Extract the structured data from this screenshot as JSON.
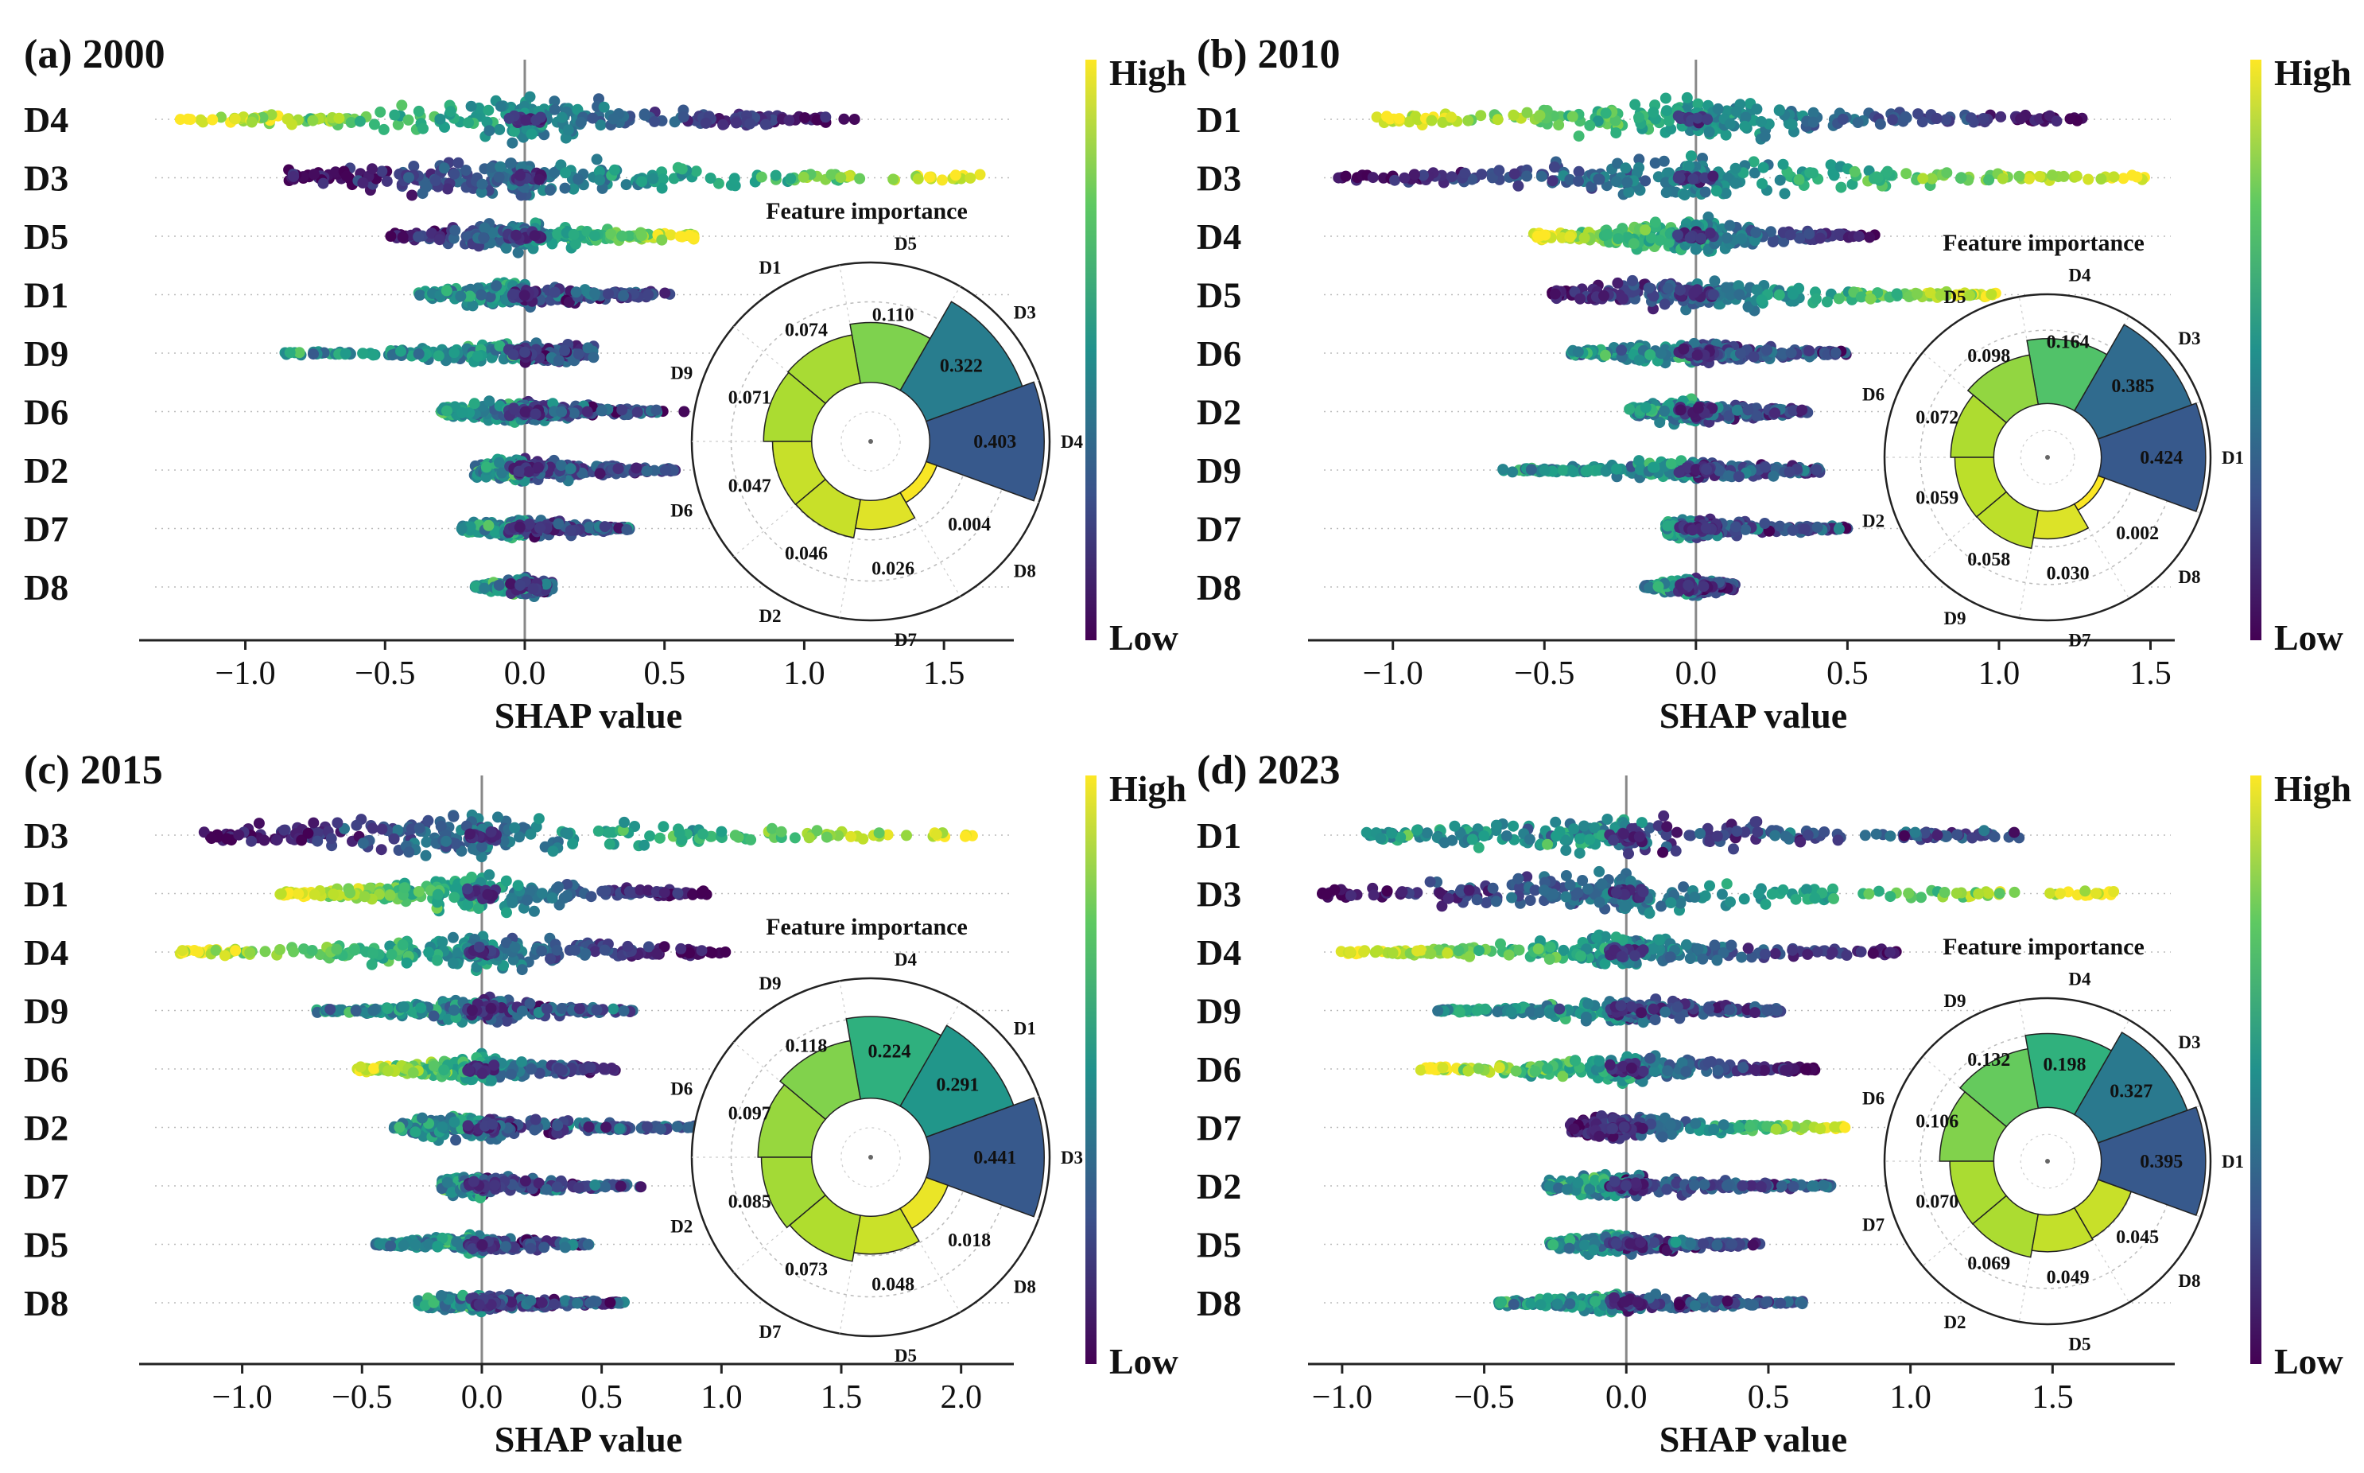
{
  "colorbar": {
    "high": "High",
    "low": "Low",
    "stops": [
      "#440154",
      "#3b528b",
      "#21918c",
      "#5ec962",
      "#fde725"
    ]
  },
  "panels": [
    {
      "title": "(a) 2000",
      "chart_data": {
        "type": "scatter",
        "subtype": "shap-beeswarm",
        "xlabel": "SHAP value",
        "xlim": [
          -1.38,
          1.75
        ],
        "xticks": [
          -1.0,
          -0.5,
          0.0,
          0.5,
          1.0,
          1.5
        ],
        "xtick_labels": [
          "−1.0",
          "−0.5",
          "0.0",
          "0.5",
          "1.0",
          "1.5"
        ],
        "features": [
          {
            "name": "D4",
            "min": -1.25,
            "max": 1.15,
            "outlier": 1.18,
            "low_side": "high",
            "spread": 1.0
          },
          {
            "name": "D3",
            "min": -0.85,
            "max": 1.63,
            "low_side": "low",
            "spread": 0.85
          },
          {
            "name": "D5",
            "min": -0.48,
            "max": 0.62,
            "low_side": "low",
            "spread": 0.6
          },
          {
            "name": "D1",
            "min": -0.38,
            "max": 0.53,
            "low_side": "mid",
            "spread": 0.55
          },
          {
            "name": "D9",
            "min": -0.86,
            "max": 0.25,
            "low_side": "mid",
            "spread": 0.4
          },
          {
            "name": "D6",
            "min": -0.3,
            "max": 0.5,
            "outlier": 0.57,
            "low_side": "mid",
            "spread": 0.5
          },
          {
            "name": "D2",
            "min": -0.18,
            "max": 0.55,
            "low_side": "mid",
            "spread": 0.45
          },
          {
            "name": "D7",
            "min": -0.23,
            "max": 0.38,
            "low_side": "mid",
            "spread": 0.35
          },
          {
            "name": "D8",
            "min": -0.18,
            "max": 0.1,
            "low_side": "mid",
            "spread": 0.3
          }
        ],
        "importance": {
          "title": "Feature importance",
          "type": "polar-bar",
          "features": [
            "D4",
            "D3",
            "D5",
            "D1",
            "D9",
            "D6",
            "D2",
            "D7",
            "D8"
          ],
          "values": [
            0.403,
            0.322,
            0.11,
            0.074,
            0.071,
            0.047,
            0.046,
            0.026,
            0.004
          ],
          "value_labels": [
            "0.403",
            "0.322",
            "0.110",
            "0.074",
            "0.071",
            "0.047",
            "0.046",
            "0.026",
            "0.004"
          ]
        }
      }
    },
    {
      "title": "(b) 2010",
      "chart_data": {
        "type": "scatter",
        "subtype": "shap-beeswarm",
        "xlabel": "SHAP value",
        "xlim": [
          -1.28,
          1.58
        ],
        "xticks": [
          -1.0,
          -0.5,
          0.0,
          0.5,
          1.0,
          1.5
        ],
        "xtick_labels": [
          "−1.0",
          "−0.5",
          "0.0",
          "0.5",
          "1.0",
          "1.5"
        ],
        "features": [
          {
            "name": "D1",
            "min": -1.07,
            "max": 1.3,
            "low_side": "high",
            "spread": 0.9
          },
          {
            "name": "D3",
            "min": -1.2,
            "max": 1.5,
            "low_side": "low",
            "spread": 0.95
          },
          {
            "name": "D4",
            "min": -0.55,
            "max": 0.6,
            "low_side": "high",
            "spread": 0.75
          },
          {
            "name": "D5",
            "min": -0.48,
            "max": 1.0,
            "low_side": "low",
            "spread": 0.6
          },
          {
            "name": "D6",
            "min": -0.42,
            "max": 0.5,
            "low_side": "mid",
            "spread": 0.55
          },
          {
            "name": "D2",
            "min": -0.22,
            "max": 0.37,
            "low_side": "mid",
            "spread": 0.45
          },
          {
            "name": "D9",
            "min": -0.65,
            "max": 0.43,
            "low_side": "mid",
            "spread": 0.4
          },
          {
            "name": "D7",
            "min": -0.1,
            "max": 0.5,
            "low_side": "mid",
            "spread": 0.35
          },
          {
            "name": "D8",
            "min": -0.17,
            "max": 0.13,
            "low_side": "mid",
            "spread": 0.3
          }
        ],
        "importance": {
          "title": "Feature importance",
          "type": "polar-bar",
          "features": [
            "D1",
            "D3",
            "D4",
            "D5",
            "D6",
            "D2",
            "D9",
            "D7",
            "D8"
          ],
          "values": [
            0.424,
            0.385,
            0.164,
            0.098,
            0.072,
            0.059,
            0.058,
            0.03,
            0.002
          ],
          "value_labels": [
            "0.424",
            "0.385",
            "0.164",
            "0.098",
            "0.072",
            "0.059",
            "0.058",
            "0.030",
            "0.002"
          ]
        }
      }
    },
    {
      "title": "(c) 2015",
      "chart_data": {
        "type": "scatter",
        "subtype": "shap-beeswarm",
        "xlabel": "SHAP value",
        "xlim": [
          -1.43,
          2.22
        ],
        "xticks": [
          -1.0,
          -0.5,
          0.0,
          0.5,
          1.0,
          1.5,
          2.0
        ],
        "xtick_labels": [
          "−1.0",
          "−0.5",
          "0.0",
          "0.5",
          "1.0",
          "1.5",
          "2.0"
        ],
        "features": [
          {
            "name": "D3",
            "min": -1.17,
            "max": 2.05,
            "low_side": "low",
            "spread": 1.0
          },
          {
            "name": "D1",
            "min": -0.85,
            "max": 0.95,
            "low_side": "high",
            "spread": 0.85
          },
          {
            "name": "D4",
            "min": -1.27,
            "max": 1.02,
            "low_side": "high",
            "spread": 0.75
          },
          {
            "name": "D9",
            "min": -0.7,
            "max": 0.63,
            "low_side": "mid",
            "spread": 0.45
          },
          {
            "name": "D6",
            "min": -0.52,
            "max": 0.57,
            "low_side": "high",
            "spread": 0.55
          },
          {
            "name": "D2",
            "min": -0.37,
            "max": 1.0,
            "low_side": "mid",
            "spread": 0.5
          },
          {
            "name": "D7",
            "min": -0.17,
            "max": 0.67,
            "low_side": "mid",
            "spread": 0.4
          },
          {
            "name": "D5",
            "min": -0.45,
            "max": 0.45,
            "low_side": "mid",
            "spread": 0.4
          },
          {
            "name": "D8",
            "min": -0.27,
            "max": 0.6,
            "low_side": "mid",
            "spread": 0.35
          }
        ],
        "importance": {
          "title": "Feature importance",
          "type": "polar-bar",
          "features": [
            "D3",
            "D1",
            "D4",
            "D9",
            "D6",
            "D2",
            "D7",
            "D5",
            "D8"
          ],
          "values": [
            0.441,
            0.291,
            0.224,
            0.118,
            0.097,
            0.085,
            0.073,
            0.048,
            0.018
          ],
          "value_labels": [
            "0.441",
            "0.291",
            "0.224",
            "0.118",
            "0.097",
            "0.085",
            "0.073",
            "0.048",
            "0.018"
          ]
        }
      }
    },
    {
      "title": "(d) 2023",
      "chart_data": {
        "type": "scatter",
        "subtype": "shap-beeswarm",
        "xlabel": "SHAP value",
        "xlim": [
          -1.12,
          1.93
        ],
        "xticks": [
          -1.0,
          -0.5,
          0.0,
          0.5,
          1.0,
          1.5
        ],
        "xtick_labels": [
          "−1.0",
          "−0.5",
          "0.0",
          "0.5",
          "1.0",
          "1.5"
        ],
        "features": [
          {
            "name": "D1",
            "min": -0.92,
            "max": 1.4,
            "low_side": "mid",
            "spread": 0.9
          },
          {
            "name": "D3",
            "min": -1.07,
            "max": 1.73,
            "low_side": "low",
            "spread": 0.95
          },
          {
            "name": "D4",
            "min": -1.03,
            "max": 1.0,
            "low_side": "high",
            "spread": 0.7
          },
          {
            "name": "D9",
            "min": -0.67,
            "max": 0.55,
            "low_side": "mid",
            "spread": 0.45
          },
          {
            "name": "D6",
            "min": -0.73,
            "max": 0.67,
            "low_side": "high",
            "spread": 0.55
          },
          {
            "name": "D7",
            "min": -0.2,
            "max": 0.77,
            "low_side": "low",
            "spread": 0.4
          },
          {
            "name": "D2",
            "min": -0.28,
            "max": 0.73,
            "low_side": "mid",
            "spread": 0.45
          },
          {
            "name": "D5",
            "min": -0.27,
            "max": 0.48,
            "low_side": "mid",
            "spread": 0.4
          },
          {
            "name": "D8",
            "min": -0.45,
            "max": 0.63,
            "low_side": "mid",
            "spread": 0.35
          }
        ],
        "importance": {
          "title": "Feature importance",
          "type": "polar-bar",
          "features": [
            "D1",
            "D3",
            "D4",
            "D9",
            "D6",
            "D7",
            "D2",
            "D5",
            "D8"
          ],
          "values": [
            0.395,
            0.327,
            0.198,
            0.132,
            0.106,
            0.07,
            0.069,
            0.049,
            0.045
          ],
          "value_labels": [
            "0.395",
            "0.327",
            "0.198",
            "0.132",
            "0.106",
            "0.070",
            "0.069",
            "0.049",
            "0.045"
          ]
        }
      }
    }
  ]
}
